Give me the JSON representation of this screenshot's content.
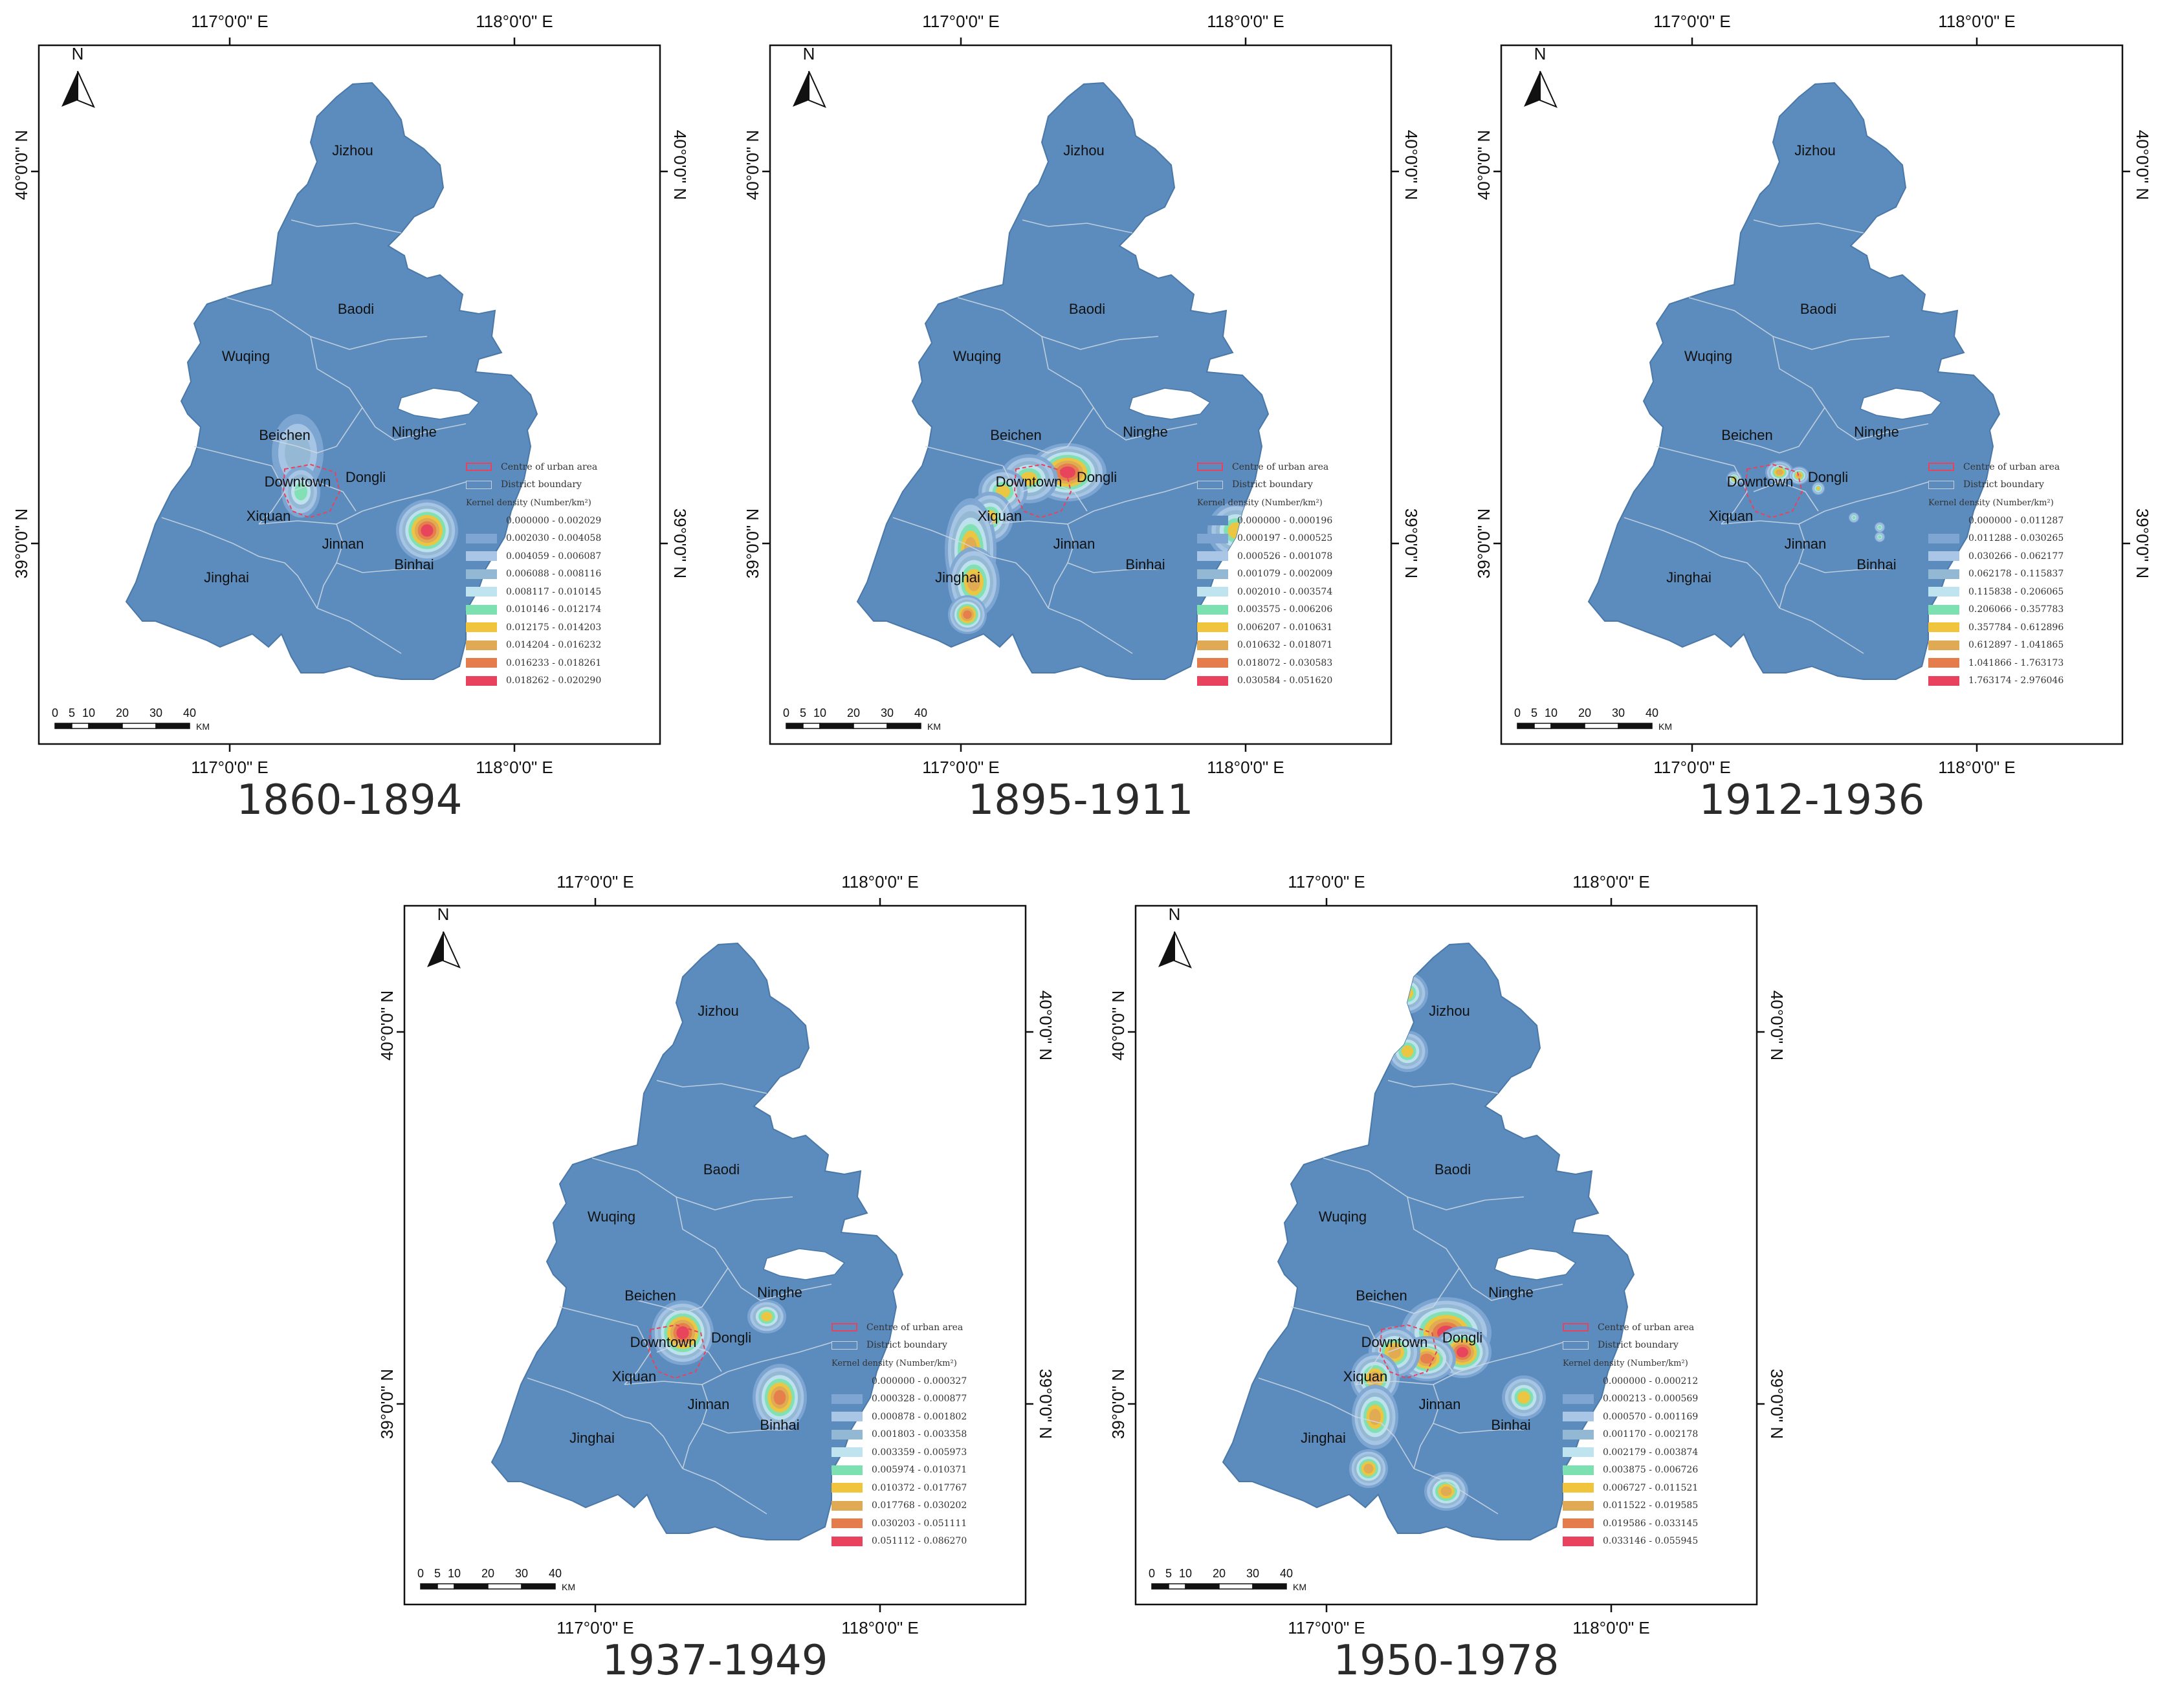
{
  "labels": {
    "lon_117": "117°0'0\" E",
    "lon_118": "118°0'0\" E",
    "lat_40": "40°0'0\" N",
    "lat_39": "39°0'0\" N",
    "north": "N",
    "scale_ticks": [
      "0",
      "5",
      "10",
      "20",
      "30",
      "40"
    ],
    "scale_unit": "KM"
  },
  "legend_titles": {
    "centre": "Centre of urban area",
    "boundary": "District boundary",
    "kernel": "Kernel density (Number/km²)"
  },
  "districts": [
    "Jizhou",
    "Baodi",
    "Wuqing",
    "Ninghe",
    "Beichen",
    "Dongli",
    "Downtown",
    "Xiquan",
    "Jinnan",
    "Binhai",
    "Jinghai"
  ],
  "colors": {
    "background_region": "#5b8cbd",
    "ramp": [
      "#5b8cbd",
      "#7fa6d3",
      "#a9c6e6",
      "#93b8d3",
      "#bfe4ef",
      "#7de0b0",
      "#f0c43c",
      "#e0aa55",
      "#e57c4c",
      "#e8425e"
    ],
    "centre_outline": "#e8425e",
    "boundary": "#cfd8e3"
  },
  "panels": [
    {
      "year": "1860-1894",
      "legend": [
        "0.000000 - 0.002029",
        "0.002030 - 0.004058",
        "0.004059 - 0.006087",
        "0.006088 - 0.008116",
        "0.008117 - 0.010145",
        "0.010146 - 0.012174",
        "0.012175 - 0.014203",
        "0.014204 - 0.016232",
        "0.016233 - 0.018261",
        "0.018262 - 0.020290"
      ]
    },
    {
      "year": "1895-1911",
      "legend": [
        "0.000000 - 0.000196",
        "0.000197 - 0.000525",
        "0.000526 - 0.001078",
        "0.001079 - 0.002009",
        "0.002010 - 0.003574",
        "0.003575 - 0.006206",
        "0.006207 - 0.010631",
        "0.010632 - 0.018071",
        "0.018072 - 0.030583",
        "0.030584 - 0.051620"
      ]
    },
    {
      "year": "1912-1936",
      "legend": [
        "0.000000 - 0.011287",
        "0.011288 - 0.030265",
        "0.030266 - 0.062177",
        "0.062178 - 0.115837",
        "0.115838 - 0.206065",
        "0.206066 - 0.357783",
        "0.357784 - 0.612896",
        "0.612897 - 1.041865",
        "1.041866 - 1.763173",
        "1.763174 - 2.976046"
      ]
    },
    {
      "year": "1937-1949",
      "legend": [
        "0.000000 - 0.000327",
        "0.000328 - 0.000877",
        "0.000878 - 0.001802",
        "0.001803 - 0.003358",
        "0.003359 - 0.005973",
        "0.005974 - 0.010371",
        "0.010372 - 0.017767",
        "0.017768 - 0.030202",
        "0.030203 - 0.051111",
        "0.051112 - 0.086270"
      ]
    },
    {
      "year": "1950-1978",
      "legend": [
        "0.000000 - 0.000212",
        "0.000213 - 0.000569",
        "0.000570 - 0.001169",
        "0.001170 - 0.002178",
        "0.002179 - 0.003874",
        "0.003875 - 0.006726",
        "0.006727 - 0.011521",
        "0.011522 - 0.019585",
        "0.019586 - 0.033145",
        "0.033146 - 0.055945"
      ]
    }
  ]
}
